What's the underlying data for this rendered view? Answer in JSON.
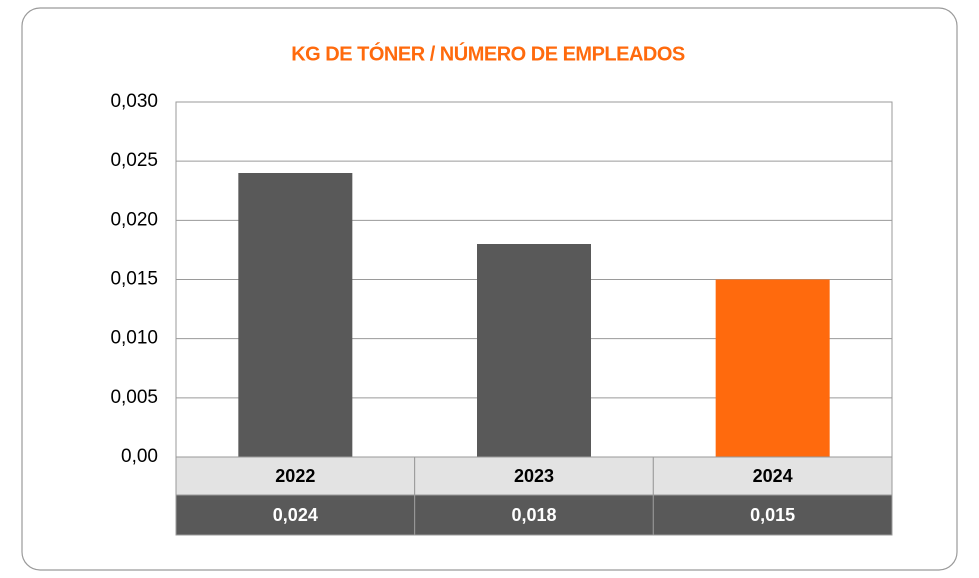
{
  "chart_data": {
    "type": "bar",
    "title": "KG DE TÓNER / NÚMERO DE EMPLEADOS",
    "categories": [
      "2022",
      "2023",
      "2024"
    ],
    "values": [
      0.024,
      0.018,
      0.015
    ],
    "value_labels": [
      "0,024",
      "0,018",
      "0,015"
    ],
    "colors": [
      "#595959",
      "#595959",
      "#ff6a0d"
    ],
    "ylim": [
      0,
      0.03
    ],
    "yticks": [
      {
        "value": 0,
        "label": "0,00"
      },
      {
        "value": 0.005,
        "label": "0,005"
      },
      {
        "value": 0.01,
        "label": "0,010"
      },
      {
        "value": 0.015,
        "label": "0,015"
      },
      {
        "value": 0.02,
        "label": "0,020"
      },
      {
        "value": 0.025,
        "label": "0,025"
      },
      {
        "value": 0.03,
        "label": "0,030"
      }
    ],
    "grid": true
  }
}
